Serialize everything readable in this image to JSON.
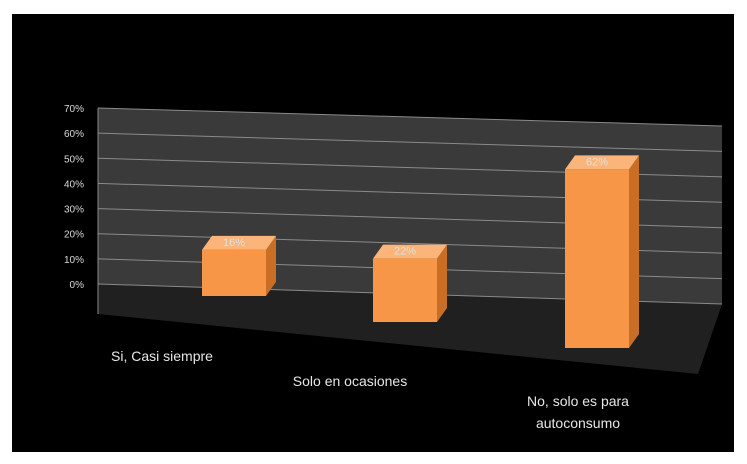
{
  "chart_data": {
    "type": "bar",
    "title": "",
    "xlabel": "",
    "ylabel": "",
    "categories": [
      "Si, Casi siempre",
      "Solo en ocasiones",
      "No, solo es para autoconsumo"
    ],
    "series": [
      {
        "values": [
          16,
          22,
          62
        ]
      }
    ],
    "data_labels": [
      "16%",
      "22%",
      "62%"
    ],
    "y_ticks": [
      "0%",
      "10%",
      "20%",
      "30%",
      "40%",
      "50%",
      "60%",
      "70%"
    ],
    "ylim": [
      0,
      70
    ],
    "grid": true,
    "legend": "none",
    "style": "3d-column"
  },
  "colors": {
    "background": "#000000",
    "bar_front": "#f79646",
    "bar_side": "#c86f25",
    "bar_top": "#fbb47a",
    "floor": "#202020",
    "back_wall": "#3a3a3a",
    "side_wall": "#2e2e2e",
    "grid": "#8a8a8a",
    "text": "#e6e6e6"
  }
}
